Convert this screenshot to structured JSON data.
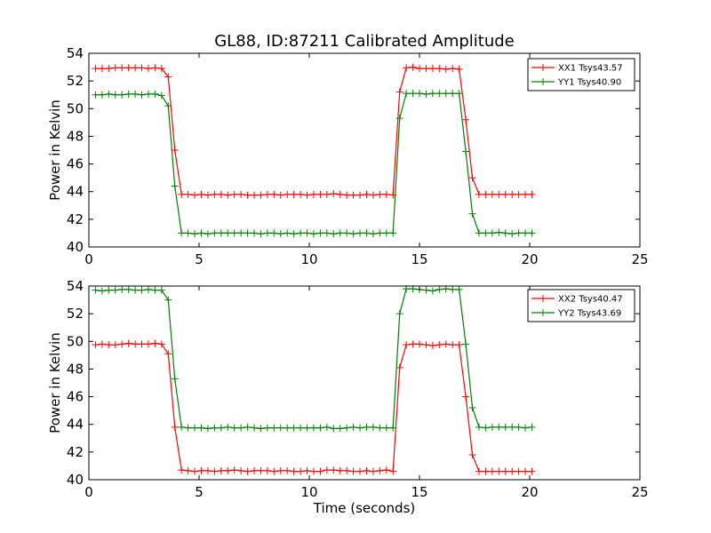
{
  "figure_title": "GL88, ID:87211 Calibrated Amplitude",
  "chart_data": [
    {
      "type": "line",
      "title": "GL88, ID:87211 Calibrated Amplitude",
      "xlabel": "",
      "ylabel": "Power in Kelvin",
      "xlim": [
        0,
        25
      ],
      "ylim": [
        40,
        54
      ],
      "xticks": [
        "0",
        "5",
        "10",
        "15",
        "20",
        "25"
      ],
      "yticks": [
        "40",
        "42",
        "44",
        "46",
        "48",
        "50",
        "52",
        "54"
      ],
      "grid": false,
      "legend_position": "top-right",
      "x": [
        0.3,
        0.6,
        0.9,
        1.2,
        1.5,
        1.8,
        2.1,
        2.4,
        2.7,
        3.0,
        3.3,
        3.6,
        3.9,
        4.2,
        4.5,
        4.8,
        5.1,
        5.4,
        5.7,
        6.0,
        6.3,
        6.6,
        6.9,
        7.2,
        7.5,
        7.8,
        8.1,
        8.4,
        8.7,
        9.0,
        9.3,
        9.6,
        9.9,
        10.2,
        10.5,
        10.8,
        11.1,
        11.4,
        11.7,
        12.0,
        12.3,
        12.6,
        12.9,
        13.2,
        13.5,
        13.8,
        14.1,
        14.4,
        14.7,
        15.0,
        15.3,
        15.6,
        15.9,
        16.2,
        16.5,
        16.8,
        17.1,
        17.4,
        17.7,
        18.0,
        18.3,
        18.6,
        18.9,
        19.2,
        19.5,
        19.8,
        20.1
      ],
      "series": [
        {
          "name": "XX1 Tsys43.57",
          "color": "#ff0000",
          "values": [
            52.9,
            52.9,
            52.9,
            52.95,
            52.95,
            52.95,
            52.95,
            52.95,
            52.9,
            52.95,
            52.9,
            52.3,
            47.0,
            43.8,
            43.8,
            43.75,
            43.8,
            43.75,
            43.8,
            43.8,
            43.75,
            43.8,
            43.8,
            43.75,
            43.75,
            43.75,
            43.8,
            43.8,
            43.75,
            43.8,
            43.8,
            43.8,
            43.75,
            43.8,
            43.8,
            43.8,
            43.85,
            43.8,
            43.75,
            43.75,
            43.75,
            43.8,
            43.75,
            43.8,
            43.8,
            43.75,
            51.2,
            52.95,
            53.0,
            52.9,
            52.9,
            52.9,
            52.9,
            52.85,
            52.9,
            52.85,
            49.2,
            45.0,
            43.8,
            43.8,
            43.8,
            43.8,
            43.8,
            43.8,
            43.8,
            43.8,
            43.8
          ]
        },
        {
          "name": "YY1 Tsys40.90",
          "color": "#008000",
          "values": [
            51.0,
            51.0,
            51.05,
            51.0,
            51.0,
            51.05,
            51.05,
            51.0,
            51.05,
            51.05,
            50.95,
            50.2,
            44.4,
            41.0,
            41.0,
            40.95,
            41.0,
            40.95,
            41.0,
            41.0,
            41.0,
            41.0,
            41.0,
            41.0,
            41.0,
            40.95,
            41.0,
            41.0,
            40.95,
            41.0,
            40.95,
            41.0,
            41.0,
            40.95,
            41.0,
            41.0,
            40.95,
            41.0,
            41.0,
            40.95,
            41.0,
            41.0,
            40.95,
            41.0,
            41.0,
            41.0,
            49.3,
            51.1,
            51.1,
            51.1,
            51.05,
            51.1,
            51.1,
            51.1,
            51.1,
            51.1,
            46.9,
            42.4,
            41.0,
            41.0,
            41.0,
            41.05,
            41.0,
            40.95,
            41.0,
            41.0,
            41.0
          ]
        }
      ]
    },
    {
      "type": "line",
      "title": "",
      "xlabel": "Time (seconds)",
      "ylabel": "Power in Kelvin",
      "xlim": [
        0,
        25
      ],
      "ylim": [
        40,
        54
      ],
      "xticks": [
        "0",
        "5",
        "10",
        "15",
        "20",
        "25"
      ],
      "yticks": [
        "40",
        "42",
        "44",
        "46",
        "48",
        "50",
        "52",
        "54"
      ],
      "grid": false,
      "legend_position": "top-right",
      "x": [
        0.3,
        0.6,
        0.9,
        1.2,
        1.5,
        1.8,
        2.1,
        2.4,
        2.7,
        3.0,
        3.3,
        3.6,
        3.9,
        4.2,
        4.5,
        4.8,
        5.1,
        5.4,
        5.7,
        6.0,
        6.3,
        6.6,
        6.9,
        7.2,
        7.5,
        7.8,
        8.1,
        8.4,
        8.7,
        9.0,
        9.3,
        9.6,
        9.9,
        10.2,
        10.5,
        10.8,
        11.1,
        11.4,
        11.7,
        12.0,
        12.3,
        12.6,
        12.9,
        13.2,
        13.5,
        13.8,
        14.1,
        14.4,
        14.7,
        15.0,
        15.3,
        15.6,
        15.9,
        16.2,
        16.5,
        16.8,
        17.1,
        17.4,
        17.7,
        18.0,
        18.3,
        18.6,
        18.9,
        19.2,
        19.5,
        19.8,
        20.1
      ],
      "series": [
        {
          "name": "XX2 Tsys40.47",
          "color": "#ff0000",
          "values": [
            49.75,
            49.8,
            49.75,
            49.75,
            49.8,
            49.85,
            49.8,
            49.8,
            49.8,
            49.85,
            49.8,
            49.1,
            43.8,
            40.7,
            40.65,
            40.6,
            40.65,
            40.65,
            40.6,
            40.65,
            40.65,
            40.7,
            40.65,
            40.6,
            40.65,
            40.65,
            40.65,
            40.6,
            40.65,
            40.65,
            40.6,
            40.6,
            40.65,
            40.6,
            40.6,
            40.7,
            40.7,
            40.65,
            40.65,
            40.6,
            40.6,
            40.65,
            40.6,
            40.65,
            40.7,
            40.6,
            48.1,
            49.75,
            49.8,
            49.8,
            49.75,
            49.7,
            49.75,
            49.8,
            49.75,
            49.75,
            46.0,
            41.8,
            40.6,
            40.6,
            40.6,
            40.6,
            40.6,
            40.6,
            40.6,
            40.6,
            40.6
          ]
        },
        {
          "name": "YY2 Tsys43.69",
          "color": "#008000",
          "values": [
            53.7,
            53.65,
            53.7,
            53.7,
            53.75,
            53.75,
            53.7,
            53.7,
            53.75,
            53.7,
            53.7,
            53.0,
            47.3,
            43.8,
            43.75,
            43.75,
            43.75,
            43.7,
            43.75,
            43.75,
            43.8,
            43.75,
            43.75,
            43.8,
            43.75,
            43.7,
            43.75,
            43.75,
            43.75,
            43.75,
            43.75,
            43.75,
            43.75,
            43.75,
            43.75,
            43.8,
            43.7,
            43.7,
            43.75,
            43.8,
            43.75,
            43.8,
            43.8,
            43.75,
            43.75,
            43.75,
            52.0,
            53.8,
            53.8,
            53.75,
            53.7,
            53.65,
            53.75,
            53.8,
            53.75,
            53.75,
            49.8,
            45.2,
            43.8,
            43.75,
            43.8,
            43.8,
            43.8,
            43.8,
            43.8,
            43.75,
            43.8
          ]
        }
      ]
    }
  ]
}
